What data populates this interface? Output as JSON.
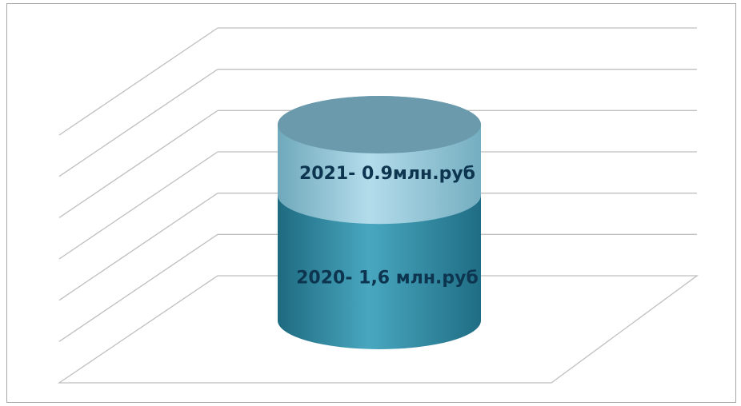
{
  "chart_data": {
    "type": "bar",
    "stacked": true,
    "three_d": true,
    "grid": true,
    "ylim": [
      0,
      3
    ],
    "categories": [
      ""
    ],
    "series": [
      {
        "name": "",
        "values": [
          1.6
        ],
        "label": "2020- 1,6 млн.руб",
        "color": "#3a97ad"
      },
      {
        "name": "",
        "values": [
          0.9
        ],
        "label": "2021- 0.9млн.руб",
        "color": "#9dd0e2"
      }
    ]
  }
}
